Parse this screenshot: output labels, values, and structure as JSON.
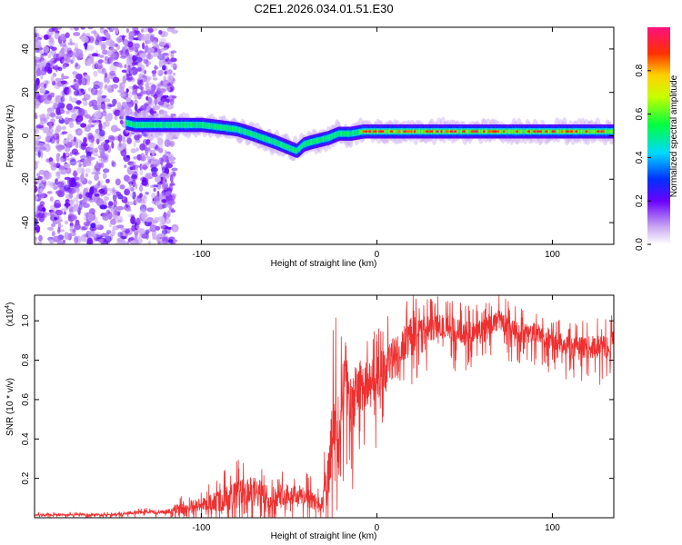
{
  "title": "C2E1.2026.034.01.51.E30",
  "chart_data": [
    {
      "type": "heatmap",
      "xlabel": "Height of straight line (km)",
      "ylabel": "Frequency (Hz)",
      "xlim": [
        -195,
        135
      ],
      "ylim": [
        -50,
        50
      ],
      "xticks": [
        -100,
        0,
        100
      ],
      "yticks": [
        -40,
        -20,
        0,
        20,
        40
      ],
      "xtick_labels": [
        "-100",
        "0",
        "100"
      ],
      "ytick_labels": [
        "-40",
        "-20",
        "0",
        "20",
        "40"
      ],
      "ridge": {
        "x": [
          -143,
          -138,
          -132,
          -125,
          -118,
          -110,
          -100,
          -90,
          -80,
          -72,
          -65,
          -58,
          -52,
          -46,
          -42,
          -38,
          -33,
          -28,
          -22,
          -15,
          -8,
          0,
          10,
          30,
          60,
          90,
          110,
          135
        ],
        "y": [
          6,
          5,
          5,
          5,
          5,
          5,
          5,
          4,
          3,
          1,
          -1,
          -3,
          -5,
          -7,
          -4,
          -3,
          -2,
          -1,
          1,
          1,
          2,
          2,
          2,
          2,
          2,
          2,
          2,
          2
        ]
      },
      "colorbar": {
        "label": "Normalized spectral amplitude",
        "range": [
          0,
          1
        ],
        "ticks": [
          0.0,
          0.2,
          0.4,
          0.6,
          0.8
        ],
        "tick_labels": [
          "0.0",
          "0.2",
          "0.4",
          "0.6",
          "0.8"
        ]
      }
    },
    {
      "type": "line",
      "xlabel": "Height of straight line (km)",
      "ylabel": "SNR (10 * v/v)",
      "yscale_label": "(x10",
      "yscale_exp": "4",
      "yscale_close": ")",
      "xlim": [
        -195,
        135
      ],
      "ylim": [
        0,
        1.13
      ],
      "xticks": [
        -100,
        0,
        100
      ],
      "yticks": [
        0.2,
        0.4,
        0.6,
        0.8,
        1.0
      ],
      "xtick_labels": [
        "-100",
        "0",
        "100"
      ],
      "ytick_labels": [
        "0.2",
        "0.4",
        "0.6",
        "0.8",
        "1.0"
      ],
      "color": "#ee3030",
      "series": [
        {
          "name": "SNR",
          "x": [
            -195,
            -150,
            -140,
            -120,
            -110,
            -100,
            -90,
            -80,
            -70,
            -60,
            -50,
            -40,
            -32,
            -27,
            -24,
            -22,
            -20,
            -18,
            -15,
            -10,
            0,
            10,
            20,
            30,
            40,
            50,
            60,
            70,
            80,
            90,
            100,
            110,
            120,
            130,
            135
          ],
          "base": [
            0.015,
            0.015,
            0.025,
            0.03,
            0.05,
            0.06,
            0.08,
            0.11,
            0.12,
            0.1,
            0.12,
            0.1,
            0.06,
            0.2,
            0.55,
            0.25,
            0.55,
            0.75,
            0.55,
            0.65,
            0.7,
            0.8,
            0.93,
            0.96,
            0.96,
            0.93,
            0.96,
            1.0,
            0.93,
            0.93,
            0.9,
            0.86,
            0.86,
            0.86,
            0.9
          ],
          "amp": [
            0.01,
            0.01,
            0.015,
            0.02,
            0.06,
            0.07,
            0.1,
            0.13,
            0.15,
            0.1,
            0.1,
            0.1,
            0.06,
            0.3,
            0.45,
            0.3,
            0.3,
            0.25,
            0.3,
            0.25,
            0.2,
            0.2,
            0.15,
            0.12,
            0.12,
            0.12,
            0.1,
            0.1,
            0.1,
            0.1,
            0.1,
            0.1,
            0.1,
            0.12,
            0.12
          ]
        }
      ]
    }
  ]
}
